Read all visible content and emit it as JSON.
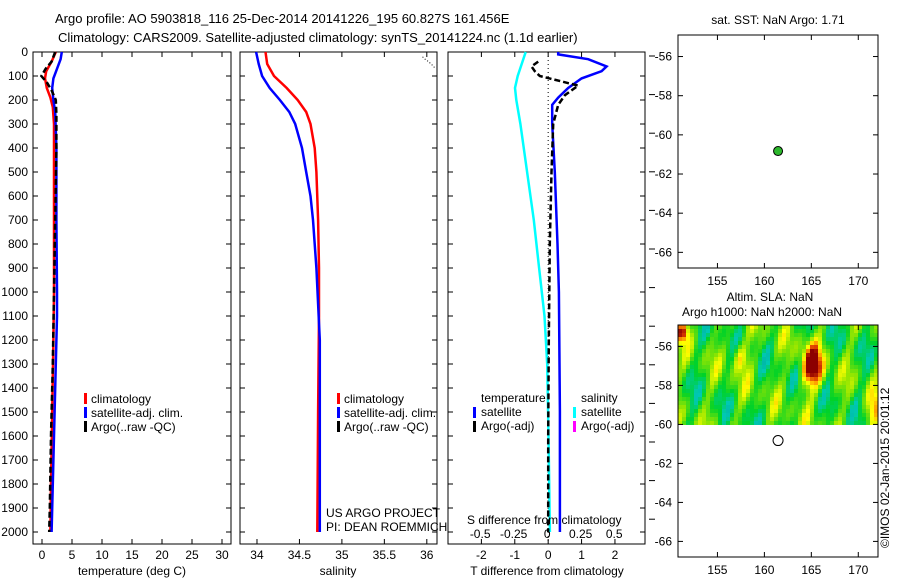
{
  "title": {
    "line1": "Argo profile: AO 5903818_116 25-Dec-2014 20141226_195 60.827S 161.456E",
    "line2": "Climatology: CARS2009. Satellite-adjusted climatology: synTS_20141224.nc (1.1d earlier)"
  },
  "colors": {
    "climatology": "#ff0000",
    "satellite": "#0000ff",
    "argo": "#000000",
    "salinity_satellite": "#00ffff",
    "salinity_argo": "#ff00ff"
  },
  "chart_data": [
    {
      "type": "line",
      "name": "temperature-profile",
      "xlabel": "temperature (deg C)",
      "ylabel": "depth",
      "xlim": [
        -1.5,
        31.5
      ],
      "ylim": [
        2050,
        0
      ],
      "xticks": [
        0,
        5,
        10,
        15,
        20,
        25,
        30
      ],
      "yticks": [
        0,
        100,
        200,
        300,
        400,
        500,
        600,
        700,
        800,
        900,
        1000,
        1100,
        1200,
        1300,
        1400,
        1500,
        1600,
        1700,
        1800,
        1900,
        2000
      ],
      "legend": [
        "climatology",
        "satellite-adj. clim.",
        "Argo(..raw -QC)"
      ],
      "series": [
        {
          "name": "climatology",
          "depth": [
            0,
            40,
            80,
            110,
            150,
            190,
            230,
            300,
            500,
            800,
            1000,
            1200,
            1500,
            1800,
            2000
          ],
          "values": [
            2.3,
            1.6,
            0.7,
            0.5,
            0.8,
            1.4,
            1.8,
            2.0,
            2.0,
            2.0,
            2.0,
            1.9,
            1.7,
            1.5,
            1.4
          ]
        },
        {
          "name": "satellite-adj. clim.",
          "depth": [
            0,
            30,
            70,
            110,
            150,
            200,
            250,
            400,
            700,
            1000,
            1100,
            1300,
            1600,
            1900,
            2000
          ],
          "values": [
            3.3,
            3.1,
            2.5,
            1.9,
            1.7,
            1.9,
            2.2,
            2.4,
            2.4,
            2.5,
            2.5,
            2.3,
            2.0,
            1.7,
            1.6
          ]
        },
        {
          "name": "Argo(..raw -QC)",
          "depth": [
            0,
            40,
            70,
            100,
            130,
            160,
            200,
            260,
            400,
            700,
            1000,
            1300,
            1600,
            1900,
            2000
          ],
          "values": [
            2.2,
            1.6,
            0.6,
            -0.1,
            0.9,
            1.6,
            2.3,
            2.4,
            2.4,
            2.2,
            2.0,
            1.8,
            1.5,
            1.3,
            1.2
          ]
        }
      ]
    },
    {
      "type": "line",
      "name": "salinity-profile",
      "xlabel": "salinity",
      "xlim": [
        33.8,
        36.12
      ],
      "ylim": [
        2050,
        0
      ],
      "xticks": [
        34,
        34.5,
        35,
        35.5,
        36
      ],
      "legend": [
        "climatology",
        "satellite-adj. clim.",
        "Argo(..raw -QC)"
      ],
      "annotation": [
        "US ARGO PROJECT",
        "PI: DEAN ROEMMICH"
      ],
      "series": [
        {
          "name": "climatology",
          "depth": [
            0,
            50,
            100,
            150,
            200,
            250,
            300,
            400,
            500,
            700,
            900,
            1100,
            1500,
            2000
          ],
          "values": [
            34.1,
            34.12,
            34.2,
            34.35,
            34.48,
            34.58,
            34.63,
            34.68,
            34.7,
            34.72,
            34.73,
            34.73,
            34.72,
            34.71
          ]
        },
        {
          "name": "satellite-adj. clim.",
          "depth": [
            0,
            50,
            100,
            150,
            200,
            250,
            300,
            400,
            500,
            600,
            700,
            900,
            1200,
            1600,
            2000
          ],
          "values": [
            33.99,
            34.02,
            34.06,
            34.15,
            34.27,
            34.38,
            34.45,
            34.53,
            34.58,
            34.63,
            34.66,
            34.7,
            34.74,
            34.74,
            34.74
          ]
        },
        {
          "name": "Argo(..raw -QC)",
          "depth": [
            20,
            30,
            40,
            50,
            60,
            70
          ],
          "values": [
            35.95,
            35.98,
            36.02,
            36.05,
            36.08,
            36.1
          ]
        }
      ]
    },
    {
      "type": "line",
      "name": "difference-profile",
      "xlabel": "T difference from climatology",
      "xlabel2": "S difference from climatology",
      "xlim": [
        -3,
        2.9
      ],
      "x2lim": [
        -0.74,
        0.73
      ],
      "ylim": [
        2050,
        0
      ],
      "xticks": [
        -2,
        -1,
        0,
        1,
        2
      ],
      "x2ticks": [
        -0.5,
        -0.25,
        0,
        0.25,
        0.5
      ],
      "x2ticklabels": [
        "-0.5",
        "-0.25",
        "0",
        "0.25",
        "0.5"
      ],
      "legend": {
        "temperature_heading": "temperature",
        "salinity_heading": "salinity",
        "t_satellite": "satellite",
        "t_argo": "Argo(-adj)",
        "s_satellite": "satellite",
        "s_argo": "Argo(-adj)"
      },
      "series": [
        {
          "name": "T satellite",
          "axis": "T",
          "depth": [
            0,
            10,
            30,
            60,
            80,
            110,
            150,
            190,
            220,
            300,
            500,
            800,
            1000,
            1500,
            2000
          ],
          "values": [
            0.3,
            0.3,
            1.2,
            1.75,
            1.6,
            1.0,
            0.6,
            0.3,
            0.12,
            0.12,
            0.2,
            0.28,
            0.32,
            0.35,
            0.35
          ]
        },
        {
          "name": "S satellite",
          "axis": "S",
          "depth": [
            0,
            50,
            100,
            150,
            200,
            300,
            500,
            700,
            900,
            1100,
            1300,
            1600,
            2000
          ],
          "values": [
            -0.16,
            -0.19,
            -0.22,
            -0.24,
            -0.23,
            -0.2,
            -0.15,
            -0.1,
            -0.06,
            -0.02,
            0.0,
            0.01,
            0.02
          ]
        },
        {
          "name": "T Argo(-adj)",
          "axis": "T",
          "depth": [
            40,
            60,
            80,
            100,
            140,
            180,
            220,
            300,
            500,
            800,
            1200,
            1600,
            2000
          ],
          "values": [
            -0.3,
            -0.5,
            -0.4,
            -0.25,
            0.9,
            0.5,
            0.3,
            0.15,
            0.1,
            0.05,
            0.02,
            0.0,
            0.0
          ]
        }
      ]
    },
    {
      "type": "scatter",
      "name": "sst-map",
      "title": "sat. SST: NaN Argo: 1.71",
      "xlim": [
        150.8,
        172.1
      ],
      "ylim": [
        -66.8,
        -54.9
      ],
      "xticks": [
        155,
        160,
        165,
        170
      ],
      "yticks": [
        -56,
        -58,
        -60,
        -62,
        -64,
        -66
      ],
      "points": [
        {
          "lon": 161.456,
          "lat": -60.827
        }
      ]
    },
    {
      "type": "heatmap",
      "name": "sla-map",
      "title": [
        "Altim. SLA: NaN",
        "Argo h1000: NaN h2000: NaN"
      ],
      "xlim": [
        150.8,
        172.1
      ],
      "ylim": [
        -66.8,
        -54.9
      ],
      "data_lat_range": [
        -60,
        -54.9
      ],
      "xticks": [
        155,
        160,
        165,
        170
      ],
      "yticks": [
        -56,
        -58,
        -60,
        -62,
        -64,
        -66
      ],
      "points": [
        {
          "lon": 161.456,
          "lat": -60.827
        }
      ]
    }
  ],
  "credit": "©IMOS 02-Jan-2015 20:01:12"
}
